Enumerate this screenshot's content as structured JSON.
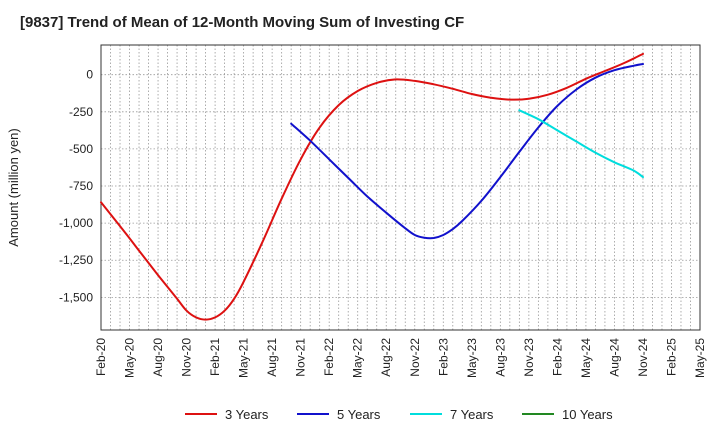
{
  "chart_data": {
    "type": "line",
    "title": "[9837]  Trend of Mean of 12-Month Moving Sum of Investing CF",
    "xlabel": "",
    "ylabel": "Amount (million yen)",
    "ylim": [
      -1720,
      200
    ],
    "yticks": [
      0,
      -250,
      -500,
      -750,
      -1000,
      -1250,
      -1500
    ],
    "ytick_labels": [
      "0",
      "-250",
      "-500",
      "-750",
      "-1,000",
      "-1,250",
      "-1,500"
    ],
    "x_start": "2020-02",
    "x_end": "2025-05",
    "xtick_labels": [
      "Feb-20",
      "May-20",
      "Aug-20",
      "Nov-20",
      "Feb-21",
      "May-21",
      "Aug-21",
      "Nov-21",
      "Feb-22",
      "May-22",
      "Aug-22",
      "Nov-22",
      "Feb-23",
      "May-23",
      "Aug-23",
      "Nov-23",
      "Feb-24",
      "May-24",
      "Aug-24",
      "Nov-24",
      "Feb-25",
      "May-25"
    ],
    "grid": true,
    "legend_position": "bottom",
    "series": [
      {
        "name": "3 Years",
        "color": "#dd1111",
        "points": [
          [
            "2020-02",
            -860
          ],
          [
            "2020-04",
            -1020
          ],
          [
            "2020-06",
            -1185
          ],
          [
            "2020-08",
            -1350
          ],
          [
            "2020-10",
            -1510
          ],
          [
            "2020-11",
            -1590
          ],
          [
            "2020-12",
            -1635
          ],
          [
            "2021-01",
            -1650
          ],
          [
            "2021-02",
            -1635
          ],
          [
            "2021-03",
            -1590
          ],
          [
            "2021-04",
            -1510
          ],
          [
            "2021-05",
            -1395
          ],
          [
            "2021-07",
            -1125
          ],
          [
            "2021-09",
            -835
          ],
          [
            "2021-11",
            -570
          ],
          [
            "2022-01",
            -355
          ],
          [
            "2022-03",
            -205
          ],
          [
            "2022-05",
            -110
          ],
          [
            "2022-07",
            -55
          ],
          [
            "2022-09",
            -32
          ],
          [
            "2022-11",
            -42
          ],
          [
            "2023-01",
            -65
          ],
          [
            "2023-03",
            -95
          ],
          [
            "2023-05",
            -130
          ],
          [
            "2023-07",
            -155
          ],
          [
            "2023-09",
            -168
          ],
          [
            "2023-11",
            -162
          ],
          [
            "2024-01",
            -135
          ],
          [
            "2024-03",
            -88
          ],
          [
            "2024-05",
            -28
          ],
          [
            "2024-07",
            25
          ],
          [
            "2024-09",
            78
          ],
          [
            "2024-11",
            140
          ]
        ]
      },
      {
        "name": "5 Years",
        "color": "#1111cc",
        "points": [
          [
            "2021-10",
            -330
          ],
          [
            "2021-12",
            -445
          ],
          [
            "2022-02",
            -570
          ],
          [
            "2022-04",
            -695
          ],
          [
            "2022-06",
            -820
          ],
          [
            "2022-08",
            -930
          ],
          [
            "2022-10",
            -1035
          ],
          [
            "2022-11",
            -1080
          ],
          [
            "2022-12",
            -1098
          ],
          [
            "2023-01",
            -1100
          ],
          [
            "2023-02",
            -1080
          ],
          [
            "2023-03",
            -1040
          ],
          [
            "2023-04",
            -985
          ],
          [
            "2023-06",
            -850
          ],
          [
            "2023-08",
            -690
          ],
          [
            "2023-10",
            -520
          ],
          [
            "2023-12",
            -355
          ],
          [
            "2024-02",
            -210
          ],
          [
            "2024-04",
            -100
          ],
          [
            "2024-06",
            -20
          ],
          [
            "2024-08",
            30
          ],
          [
            "2024-10",
            60
          ],
          [
            "2024-11",
            72
          ]
        ]
      },
      {
        "name": "7 Years",
        "color": "#00dddd",
        "points": [
          [
            "2023-10",
            -240
          ],
          [
            "2023-12",
            -300
          ],
          [
            "2024-02",
            -375
          ],
          [
            "2024-04",
            -450
          ],
          [
            "2024-06",
            -525
          ],
          [
            "2024-08",
            -590
          ],
          [
            "2024-10",
            -645
          ],
          [
            "2024-11",
            -690
          ]
        ]
      },
      {
        "name": "10 Years",
        "color": "#228822",
        "points": []
      }
    ]
  }
}
